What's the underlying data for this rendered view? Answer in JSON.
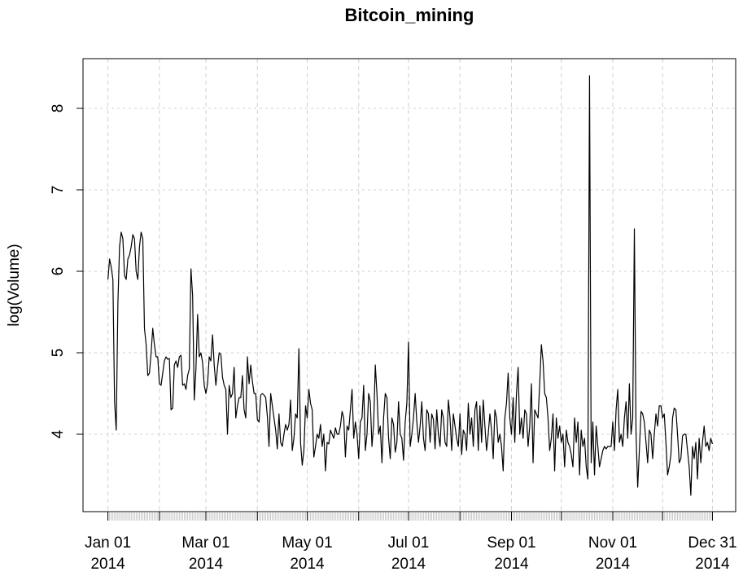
{
  "chart_data": {
    "type": "line",
    "title": "Bitcoin_mining",
    "y_label": "log(Volume)",
    "x": [
      "2014-01-01",
      "2014-01-02",
      "2014-01-03",
      "2014-01-04",
      "2014-01-05",
      "2014-01-06",
      "2014-01-07",
      "2014-01-08",
      "2014-01-09",
      "2014-01-10",
      "2014-01-11",
      "2014-01-12",
      "2014-01-13",
      "2014-01-14",
      "2014-01-15",
      "2014-01-16",
      "2014-01-17",
      "2014-01-18",
      "2014-01-19",
      "2014-01-20",
      "2014-01-21",
      "2014-01-22",
      "2014-01-23",
      "2014-01-24",
      "2014-01-25",
      "2014-01-26",
      "2014-01-27",
      "2014-01-28",
      "2014-01-29",
      "2014-01-30",
      "2014-01-31",
      "2014-02-01",
      "2014-02-02",
      "2014-02-03",
      "2014-02-04",
      "2014-02-05",
      "2014-02-06",
      "2014-02-07",
      "2014-02-08",
      "2014-02-09",
      "2014-02-10",
      "2014-02-11",
      "2014-02-12",
      "2014-02-13",
      "2014-02-14",
      "2014-02-15",
      "2014-02-16",
      "2014-02-17",
      "2014-02-18",
      "2014-02-19",
      "2014-02-20",
      "2014-02-21",
      "2014-02-22",
      "2014-02-23",
      "2014-02-24",
      "2014-02-25",
      "2014-02-26",
      "2014-02-27",
      "2014-02-28",
      "2014-03-01",
      "2014-03-02",
      "2014-03-03",
      "2014-03-04",
      "2014-03-05",
      "2014-03-06",
      "2014-03-07",
      "2014-03-08",
      "2014-03-09",
      "2014-03-10",
      "2014-03-11",
      "2014-03-12",
      "2014-03-13",
      "2014-03-14",
      "2014-03-15",
      "2014-03-16",
      "2014-03-17",
      "2014-03-18",
      "2014-03-19",
      "2014-03-20",
      "2014-03-21",
      "2014-03-22",
      "2014-03-23",
      "2014-03-24",
      "2014-03-25",
      "2014-03-26",
      "2014-03-27",
      "2014-03-28",
      "2014-03-29",
      "2014-03-30",
      "2014-03-31",
      "2014-04-01",
      "2014-04-02",
      "2014-04-03",
      "2014-04-04",
      "2014-04-05",
      "2014-04-06",
      "2014-04-07",
      "2014-04-08",
      "2014-04-09",
      "2014-04-10",
      "2014-04-11",
      "2014-04-12",
      "2014-04-13",
      "2014-04-14",
      "2014-04-15",
      "2014-04-16",
      "2014-04-17",
      "2014-04-18",
      "2014-04-19",
      "2014-04-20",
      "2014-04-21",
      "2014-04-22",
      "2014-04-23",
      "2014-04-24",
      "2014-04-25",
      "2014-04-26",
      "2014-04-27",
      "2014-04-28",
      "2014-04-29",
      "2014-04-30",
      "2014-05-01",
      "2014-05-02",
      "2014-05-03",
      "2014-05-04",
      "2014-05-05",
      "2014-05-06",
      "2014-05-07",
      "2014-05-08",
      "2014-05-09",
      "2014-05-10",
      "2014-05-11",
      "2014-05-12",
      "2014-05-13",
      "2014-05-14",
      "2014-05-15",
      "2014-05-16",
      "2014-05-17",
      "2014-05-18",
      "2014-05-19",
      "2014-05-20",
      "2014-05-21",
      "2014-05-22",
      "2014-05-23",
      "2014-05-24",
      "2014-05-25",
      "2014-05-26",
      "2014-05-27",
      "2014-05-28",
      "2014-05-29",
      "2014-05-30",
      "2014-05-31",
      "2014-06-01",
      "2014-06-02",
      "2014-06-03",
      "2014-06-04",
      "2014-06-05",
      "2014-06-06",
      "2014-06-07",
      "2014-06-08",
      "2014-06-09",
      "2014-06-10",
      "2014-06-11",
      "2014-06-12",
      "2014-06-13",
      "2014-06-14",
      "2014-06-15",
      "2014-06-16",
      "2014-06-17",
      "2014-06-18",
      "2014-06-19",
      "2014-06-20",
      "2014-06-21",
      "2014-06-22",
      "2014-06-23",
      "2014-06-24",
      "2014-06-25",
      "2014-06-26",
      "2014-06-27",
      "2014-06-28",
      "2014-06-29",
      "2014-06-30",
      "2014-07-01",
      "2014-07-02",
      "2014-07-03",
      "2014-07-04",
      "2014-07-05",
      "2014-07-06",
      "2014-07-07",
      "2014-07-08",
      "2014-07-09",
      "2014-07-10",
      "2014-07-11",
      "2014-07-12",
      "2014-07-13",
      "2014-07-14",
      "2014-07-15",
      "2014-07-16",
      "2014-07-17",
      "2014-07-18",
      "2014-07-19",
      "2014-07-20",
      "2014-07-21",
      "2014-07-22",
      "2014-07-23",
      "2014-07-24",
      "2014-07-25",
      "2014-07-26",
      "2014-07-27",
      "2014-07-28",
      "2014-07-29",
      "2014-07-30",
      "2014-07-31",
      "2014-08-01",
      "2014-08-02",
      "2014-08-03",
      "2014-08-04",
      "2014-08-05",
      "2014-08-06",
      "2014-08-07",
      "2014-08-08",
      "2014-08-09",
      "2014-08-10",
      "2014-08-11",
      "2014-08-12",
      "2014-08-13",
      "2014-08-14",
      "2014-08-15",
      "2014-08-16",
      "2014-08-17",
      "2014-08-18",
      "2014-08-19",
      "2014-08-20",
      "2014-08-21",
      "2014-08-22",
      "2014-08-23",
      "2014-08-24",
      "2014-08-25",
      "2014-08-26",
      "2014-08-27",
      "2014-08-28",
      "2014-08-29",
      "2014-08-30",
      "2014-08-31",
      "2014-09-01",
      "2014-09-02",
      "2014-09-03",
      "2014-09-04",
      "2014-09-05",
      "2014-09-06",
      "2014-09-07",
      "2014-09-08",
      "2014-09-09",
      "2014-09-10",
      "2014-09-11",
      "2014-09-12",
      "2014-09-13",
      "2014-09-14",
      "2014-09-15",
      "2014-09-16",
      "2014-09-17",
      "2014-09-18",
      "2014-09-19",
      "2014-09-20",
      "2014-09-21",
      "2014-09-22",
      "2014-09-23",
      "2014-09-24",
      "2014-09-25",
      "2014-09-26",
      "2014-09-27",
      "2014-09-28",
      "2014-09-29",
      "2014-09-30",
      "2014-10-01",
      "2014-10-02",
      "2014-10-03",
      "2014-10-04",
      "2014-10-05",
      "2014-10-06",
      "2014-10-07",
      "2014-10-08",
      "2014-10-09",
      "2014-10-10",
      "2014-10-11",
      "2014-10-12",
      "2014-10-13",
      "2014-10-14",
      "2014-10-15",
      "2014-10-16",
      "2014-10-17",
      "2014-10-18",
      "2014-10-19",
      "2014-10-20",
      "2014-10-21",
      "2014-10-22",
      "2014-10-23",
      "2014-10-24",
      "2014-10-25",
      "2014-10-26",
      "2014-10-27",
      "2014-10-28",
      "2014-10-29",
      "2014-10-30",
      "2014-10-31",
      "2014-11-01",
      "2014-11-02",
      "2014-11-03",
      "2014-11-04",
      "2014-11-05",
      "2014-11-06",
      "2014-11-07",
      "2014-11-08",
      "2014-11-09",
      "2014-11-10",
      "2014-11-11",
      "2014-11-12",
      "2014-11-13",
      "2014-11-14",
      "2014-11-15",
      "2014-11-16",
      "2014-11-17",
      "2014-11-18",
      "2014-11-19",
      "2014-11-20",
      "2014-11-21",
      "2014-11-22",
      "2014-11-23",
      "2014-11-24",
      "2014-11-25",
      "2014-11-26",
      "2014-11-27",
      "2014-11-28",
      "2014-11-29",
      "2014-11-30",
      "2014-12-01",
      "2014-12-02",
      "2014-12-03",
      "2014-12-04",
      "2014-12-05",
      "2014-12-06",
      "2014-12-07",
      "2014-12-08",
      "2014-12-09",
      "2014-12-10",
      "2014-12-11",
      "2014-12-12",
      "2014-12-13",
      "2014-12-14",
      "2014-12-15",
      "2014-12-16",
      "2014-12-17",
      "2014-12-18",
      "2014-12-19",
      "2014-12-20",
      "2014-12-21",
      "2014-12-22",
      "2014-12-23",
      "2014-12-24",
      "2014-12-25",
      "2014-12-26",
      "2014-12-27",
      "2014-12-28",
      "2014-12-29",
      "2014-12-30",
      "2014-12-31"
    ],
    "values": [
      5.9,
      6.15,
      6.05,
      5.9,
      4.4,
      4.05,
      5.6,
      6.3,
      6.48,
      6.4,
      5.95,
      5.9,
      6.15,
      6.2,
      6.3,
      6.45,
      6.4,
      6.0,
      5.9,
      6.3,
      6.48,
      6.4,
      5.3,
      5.1,
      4.72,
      4.75,
      5.0,
      5.3,
      5.1,
      4.95,
      4.95,
      4.62,
      4.6,
      4.75,
      4.9,
      4.95,
      4.92,
      4.93,
      4.3,
      4.32,
      4.85,
      4.9,
      4.82,
      4.95,
      4.97,
      4.6,
      4.62,
      4.55,
      4.72,
      4.8,
      6.03,
      5.7,
      4.42,
      4.8,
      5.47,
      4.95,
      5.0,
      4.88,
      4.6,
      4.5,
      4.62,
      4.95,
      4.9,
      5.22,
      4.85,
      4.6,
      4.82,
      5.0,
      4.98,
      4.7,
      4.6,
      4.55,
      4.0,
      4.6,
      4.45,
      4.5,
      4.82,
      4.2,
      4.35,
      4.45,
      4.45,
      4.72,
      4.3,
      4.2,
      4.95,
      4.62,
      4.85,
      4.65,
      4.5,
      4.5,
      4.18,
      4.15,
      4.48,
      4.5,
      4.48,
      4.45,
      4.22,
      3.85,
      4.5,
      4.35,
      4.2,
      4.05,
      3.82,
      4.25,
      3.9,
      3.85,
      4.0,
      4.12,
      4.05,
      4.12,
      4.42,
      3.8,
      3.95,
      4.25,
      4.2,
      5.05,
      3.9,
      3.62,
      3.8,
      4.35,
      4.2,
      4.55,
      4.38,
      4.3,
      3.72,
      3.85,
      4.0,
      3.95,
      4.12,
      3.85,
      4.0,
      3.55,
      3.9,
      3.88,
      4.05,
      4.0,
      3.95,
      4.08,
      4.0,
      4.0,
      4.1,
      4.28,
      4.2,
      3.72,
      4.1,
      4.05,
      4.3,
      4.55,
      3.95,
      4.15,
      4.0,
      3.7,
      4.15,
      4.2,
      4.6,
      3.8,
      4.0,
      4.5,
      4.4,
      3.85,
      4.12,
      4.85,
      4.5,
      4.0,
      4.1,
      3.65,
      4.2,
      4.5,
      4.45,
      3.95,
      3.7,
      4.2,
      4.12,
      3.78,
      3.9,
      4.4,
      4.0,
      3.95,
      3.68,
      4.15,
      4.38,
      5.13,
      3.85,
      4.0,
      4.2,
      4.5,
      4.15,
      3.9,
      4.1,
      4.4,
      3.95,
      3.8,
      4.3,
      4.25,
      3.9,
      4.25,
      4.18,
      3.82,
      4.3,
      4.0,
      3.85,
      4.3,
      4.2,
      3.9,
      3.85,
      4.42,
      4.2,
      3.8,
      4.25,
      4.1,
      3.95,
      3.85,
      4.25,
      3.75,
      4.05,
      4.0,
      3.8,
      4.38,
      4.0,
      4.2,
      3.85,
      4.3,
      4.4,
      3.8,
      4.35,
      3.9,
      4.42,
      4.1,
      3.8,
      4.0,
      4.25,
      4.05,
      3.7,
      4.3,
      4.2,
      3.9,
      4.0,
      3.85,
      3.55,
      4.2,
      4.38,
      4.75,
      4.2,
      4.0,
      4.45,
      3.9,
      4.5,
      4.82,
      4.0,
      4.2,
      3.95,
      4.3,
      4.25,
      3.85,
      4.1,
      4.62,
      3.65,
      4.3,
      4.25,
      4.2,
      4.62,
      5.1,
      4.9,
      4.5,
      4.45,
      4.2,
      3.8,
      3.95,
      4.25,
      3.55,
      4.2,
      3.95,
      4.1,
      3.9,
      4.0,
      3.6,
      4.05,
      3.9,
      3.85,
      3.75,
      3.6,
      4.2,
      3.9,
      4.15,
      3.5,
      4.05,
      3.85,
      3.95,
      3.6,
      3.45,
      8.4,
      3.65,
      4.15,
      3.5,
      4.1,
      3.85,
      3.6,
      3.7,
      3.8,
      3.85,
      3.82,
      3.85,
      3.85,
      3.85,
      4.15,
      3.8,
      4.3,
      4.55,
      3.9,
      4.0,
      3.85,
      4.2,
      4.4,
      3.95,
      4.62,
      4.0,
      4.2,
      6.52,
      4.0,
      3.35,
      3.8,
      4.28,
      4.25,
      4.15,
      3.9,
      3.65,
      4.05,
      4.0,
      3.7,
      4.0,
      4.25,
      4.1,
      4.35,
      4.35,
      4.2,
      4.25,
      3.9,
      3.5,
      3.6,
      3.75,
      4.2,
      4.32,
      4.3,
      4.0,
      3.65,
      3.7,
      3.98,
      4.0,
      4.0,
      3.8,
      3.6,
      3.25,
      3.85,
      3.7,
      3.9,
      3.45,
      3.95,
      3.65,
      3.9,
      4.1,
      3.85,
      3.9,
      3.8,
      3.95,
      3.88
    ],
    "color": "#000000",
    "xlim": [
      "2013-12-17",
      "2015-01-14"
    ],
    "xticks": [
      {
        "value": "2014-01-01",
        "label": "Jan 01\n2014"
      },
      {
        "value": "2014-02-01",
        "label": null
      },
      {
        "value": "2014-03-01",
        "label": "Mar 01\n2014"
      },
      {
        "value": "2014-04-01",
        "label": null
      },
      {
        "value": "2014-05-01",
        "label": "May 01\n2014"
      },
      {
        "value": "2014-06-01",
        "label": null
      },
      {
        "value": "2014-07-01",
        "label": "Jul 01\n2014"
      },
      {
        "value": "2014-08-01",
        "label": null
      },
      {
        "value": "2014-09-01",
        "label": "Sep 01\n2014"
      },
      {
        "value": "2014-10-01",
        "label": null
      },
      {
        "value": "2014-11-01",
        "label": "Nov 01\n2014"
      },
      {
        "value": "2014-12-01",
        "label": null
      },
      {
        "value": "2014-12-31",
        "label": "Dec 31\n2014"
      }
    ],
    "ylim": [
      3.05,
      8.61
    ],
    "yticks": [
      4,
      5,
      6,
      7,
      8
    ],
    "grid": true
  }
}
